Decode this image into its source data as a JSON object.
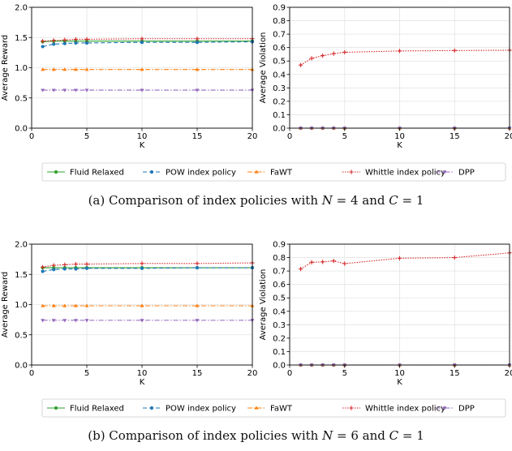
{
  "colors": {
    "Fluid Relaxed": "#2ca02c",
    "POW index policy": "#1f77b4",
    "FaWT": "#ff7f0e",
    "Whittle index policy": "#d62728",
    "DPP": "#9467bd"
  },
  "legend": [
    "Fluid Relaxed",
    "POW index policy",
    "FaWT",
    "Whittle index policy",
    "DPP"
  ],
  "captions": [
    {
      "pre": "(a)  Comparison of index policies with ",
      "n_var": "N",
      "n_val": " = 4 and ",
      "c_var": "C",
      "c_val": " = 1"
    },
    {
      "pre": "(b)  Comparison of index policies with ",
      "n_var": "N",
      "n_val": " = 6 and ",
      "c_var": "C",
      "c_val": " = 1"
    }
  ],
  "chart_data": [
    {
      "type": "line",
      "panel": "a-left",
      "xlabel": "K",
      "ylabel": "Average Reward",
      "xlim": [
        0,
        20
      ],
      "ylim": [
        0,
        2.0
      ],
      "xticks": [
        0,
        5,
        10,
        15,
        20
      ],
      "yticks": [
        "0.0",
        "0.5",
        "1.0",
        "1.5",
        "2.0"
      ],
      "grid": true,
      "x": [
        1,
        2,
        3,
        4,
        5,
        10,
        15,
        20
      ],
      "series": [
        {
          "name": "Fluid Relaxed",
          "values": [
            1.43,
            1.44,
            1.44,
            1.44,
            1.44,
            1.44,
            1.44,
            1.44
          ]
        },
        {
          "name": "POW index policy",
          "values": [
            1.35,
            1.39,
            1.4,
            1.41,
            1.41,
            1.42,
            1.42,
            1.43
          ]
        },
        {
          "name": "FaWT",
          "values": [
            0.97,
            0.97,
            0.97,
            0.97,
            0.97,
            0.97,
            0.97,
            0.97
          ]
        },
        {
          "name": "Whittle index policy",
          "values": [
            1.44,
            1.45,
            1.46,
            1.47,
            1.47,
            1.48,
            1.48,
            1.48
          ]
        },
        {
          "name": "DPP",
          "values": [
            0.63,
            0.63,
            0.63,
            0.63,
            0.63,
            0.63,
            0.63,
            0.63
          ]
        }
      ]
    },
    {
      "type": "line",
      "panel": "a-right",
      "xlabel": "K",
      "ylabel": "Average Violation",
      "xlim": [
        0,
        20
      ],
      "ylim": [
        0,
        0.9
      ],
      "xticks": [
        0,
        5,
        10,
        15,
        20
      ],
      "yticks": [
        "0.0",
        "0.1",
        "0.2",
        "0.3",
        "0.4",
        "0.5",
        "0.6",
        "0.7",
        "0.8",
        "0.9"
      ],
      "grid": true,
      "x": [
        1,
        2,
        3,
        4,
        5,
        10,
        15,
        20
      ],
      "series": [
        {
          "name": "Fluid Relaxed",
          "values": [
            0,
            0,
            0,
            0,
            0,
            0,
            0,
            0
          ]
        },
        {
          "name": "POW index policy",
          "values": [
            0,
            0,
            0,
            0,
            0,
            0,
            0,
            0
          ]
        },
        {
          "name": "FaWT",
          "values": [
            0,
            0,
            0,
            0,
            0,
            0,
            0,
            0
          ]
        },
        {
          "name": "Whittle index policy",
          "values": [
            0.47,
            0.52,
            0.54,
            0.555,
            0.565,
            0.575,
            0.578,
            0.58
          ]
        },
        {
          "name": "DPP",
          "values": [
            0,
            0,
            0,
            0,
            0,
            0,
            0,
            0
          ]
        }
      ]
    },
    {
      "type": "line",
      "panel": "b-left",
      "xlabel": "K",
      "ylabel": "Average Reward",
      "xlim": [
        0,
        20
      ],
      "ylim": [
        0,
        2.0
      ],
      "xticks": [
        0,
        5,
        10,
        15,
        20
      ],
      "yticks": [
        "0.0",
        "0.5",
        "1.0",
        "1.5",
        "2.0"
      ],
      "grid": true,
      "x": [
        1,
        2,
        3,
        4,
        5,
        10,
        15,
        20
      ],
      "series": [
        {
          "name": "Fluid Relaxed",
          "values": [
            1.61,
            1.61,
            1.61,
            1.61,
            1.61,
            1.61,
            1.61,
            1.61
          ]
        },
        {
          "name": "POW index policy",
          "values": [
            1.55,
            1.58,
            1.59,
            1.59,
            1.6,
            1.6,
            1.61,
            1.61
          ]
        },
        {
          "name": "FaWT",
          "values": [
            0.98,
            0.98,
            0.98,
            0.98,
            0.98,
            0.98,
            0.98,
            0.98
          ]
        },
        {
          "name": "Whittle index policy",
          "values": [
            1.62,
            1.65,
            1.66,
            1.67,
            1.67,
            1.68,
            1.68,
            1.69
          ]
        },
        {
          "name": "DPP",
          "values": [
            0.74,
            0.74,
            0.74,
            0.74,
            0.74,
            0.74,
            0.74,
            0.74
          ]
        }
      ]
    },
    {
      "type": "line",
      "panel": "b-right",
      "xlabel": "K",
      "ylabel": "Average Violation",
      "xlim": [
        0,
        20
      ],
      "ylim": [
        0,
        0.9
      ],
      "xticks": [
        0,
        5,
        10,
        15,
        20
      ],
      "yticks": [
        "0.0",
        "0.1",
        "0.2",
        "0.3",
        "0.4",
        "0.5",
        "0.6",
        "0.7",
        "0.8",
        "0.9"
      ],
      "grid": true,
      "x": [
        1,
        2,
        3,
        4,
        5,
        10,
        15,
        20
      ],
      "series": [
        {
          "name": "Fluid Relaxed",
          "values": [
            0,
            0,
            0,
            0,
            0,
            0,
            0,
            0
          ]
        },
        {
          "name": "POW index policy",
          "values": [
            0,
            0,
            0,
            0,
            0,
            0,
            0,
            0
          ]
        },
        {
          "name": "FaWT",
          "values": [
            0,
            0,
            0,
            0,
            0,
            0,
            0,
            0
          ]
        },
        {
          "name": "Whittle index policy",
          "values": [
            0.715,
            0.765,
            0.768,
            0.775,
            0.755,
            0.795,
            0.8,
            0.835
          ]
        },
        {
          "name": "DPP",
          "values": [
            0,
            0,
            0,
            0,
            0,
            0,
            0,
            0
          ]
        }
      ]
    }
  ]
}
